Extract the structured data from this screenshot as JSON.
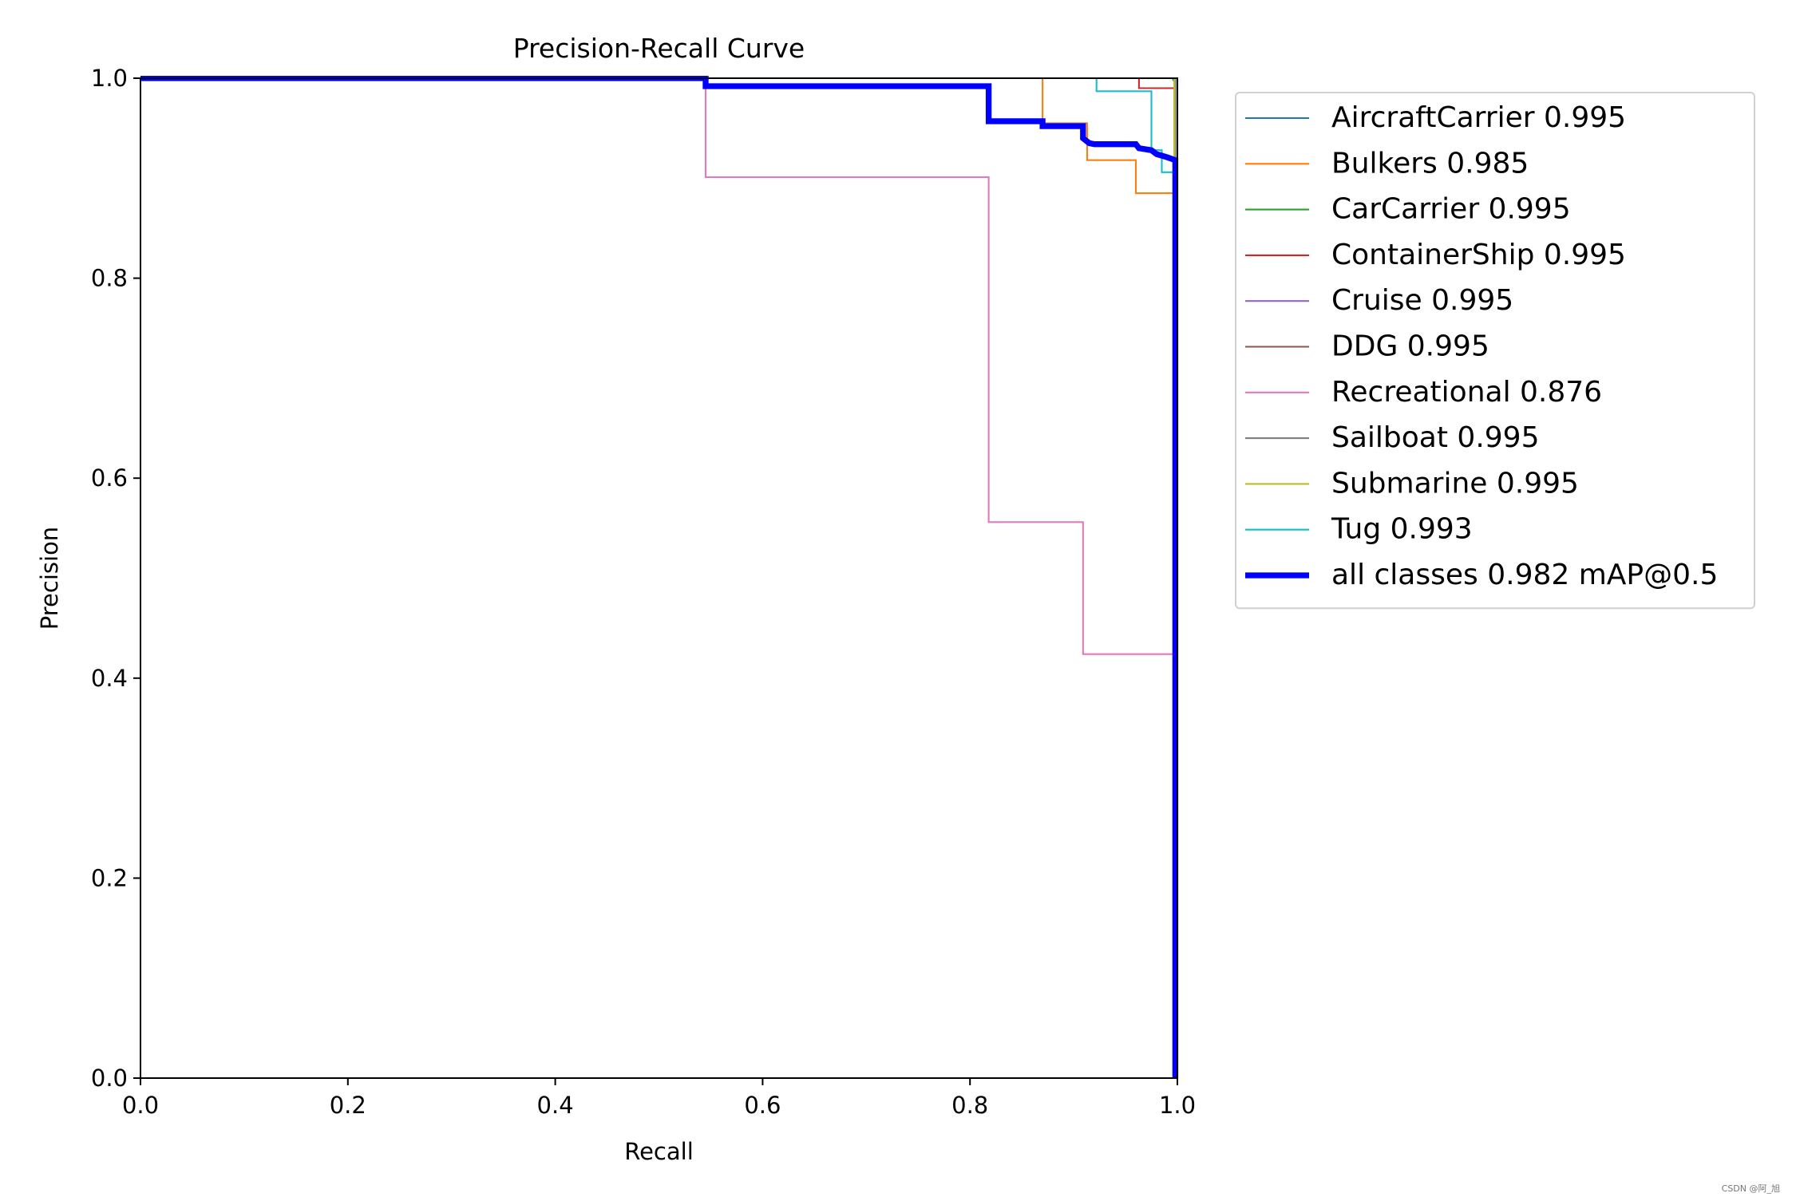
{
  "chart_data": {
    "type": "line",
    "title": "Precision-Recall Curve",
    "xlabel": "Recall",
    "ylabel": "Precision",
    "xlim": [
      0,
      1
    ],
    "ylim": [
      0,
      1
    ],
    "xticks": [
      "0.0",
      "0.2",
      "0.4",
      "0.6",
      "0.8",
      "1.0"
    ],
    "yticks": [
      "0.0",
      "0.2",
      "0.4",
      "0.6",
      "0.8",
      "1.0"
    ],
    "grid": false,
    "legend_position": "outside-right-top",
    "series": [
      {
        "name": "AircraftCarrier 0.995",
        "color": "#1f77b4",
        "width": 1,
        "x": [
          0,
          0.995,
          1.0,
          1.0
        ],
        "y": [
          1.0,
          1.0,
          1.0,
          0.0
        ]
      },
      {
        "name": "Bulkers 0.985",
        "color": "#ff7f0e",
        "width": 1,
        "x": [
          0,
          0.87,
          0.87,
          0.913,
          0.913,
          0.913,
          0.96,
          0.96,
          0.997,
          0.997
        ],
        "y": [
          1.0,
          1.0,
          0.955,
          0.955,
          0.918,
          0.918,
          0.918,
          0.885,
          0.885,
          0.0
        ]
      },
      {
        "name": "CarCarrier 0.995",
        "color": "#2ca02c",
        "width": 1,
        "x": [
          0,
          0.995,
          0.998,
          0.998
        ],
        "y": [
          1.0,
          1.0,
          0.995,
          0.0
        ]
      },
      {
        "name": "ContainerShip 0.995",
        "color": "#d62728",
        "width": 1,
        "x": [
          0,
          0.963,
          0.963,
          0.998,
          0.998
        ],
        "y": [
          1.0,
          1.0,
          0.99,
          0.99,
          0.0
        ]
      },
      {
        "name": "Cruise 0.995",
        "color": "#9467bd",
        "width": 1,
        "x": [
          0,
          0.998,
          0.998
        ],
        "y": [
          1.0,
          1.0,
          0.0
        ]
      },
      {
        "name": "DDG 0.995",
        "color": "#8c564b",
        "width": 1,
        "x": [
          0,
          0.998,
          0.998
        ],
        "y": [
          1.0,
          1.0,
          0.0
        ]
      },
      {
        "name": "Recreational 0.876",
        "color": "#e377c2",
        "width": 1,
        "x": [
          0,
          0.545,
          0.545,
          0.818,
          0.818,
          0.909,
          0.909,
          0.997,
          0.997
        ],
        "y": [
          1.0,
          1.0,
          0.901,
          0.901,
          0.556,
          0.556,
          0.424,
          0.424,
          0.0
        ]
      },
      {
        "name": "Sailboat 0.995",
        "color": "#7f7f7f",
        "width": 1,
        "x": [
          0,
          0.998,
          0.998
        ],
        "y": [
          1.0,
          1.0,
          0.0
        ]
      },
      {
        "name": "Submarine 0.995",
        "color": "#bcbd22",
        "width": 1,
        "x": [
          0,
          0.997,
          0.997,
          1.0,
          1.0
        ],
        "y": [
          1.0,
          1.0,
          0.92,
          0.92,
          0.0
        ]
      },
      {
        "name": "Tug 0.993",
        "color": "#17becf",
        "width": 1,
        "x": [
          0,
          0.922,
          0.922,
          0.975,
          0.975,
          0.985,
          0.985,
          0.998,
          0.998
        ],
        "y": [
          1.0,
          1.0,
          0.987,
          0.987,
          0.928,
          0.928,
          0.906,
          0.906,
          0.0
        ]
      },
      {
        "name": "all classes 0.982 mAP@0.5",
        "color": "#0000ff",
        "width": 3.5,
        "x": [
          0,
          0.545,
          0.545,
          0.818,
          0.818,
          0.87,
          0.87,
          0.909,
          0.909,
          0.915,
          0.92,
          0.96,
          0.963,
          0.975,
          0.98,
          0.99,
          0.998,
          0.998
        ],
        "y": [
          1.0,
          1.0,
          0.992,
          0.992,
          0.957,
          0.957,
          0.952,
          0.952,
          0.94,
          0.935,
          0.934,
          0.934,
          0.93,
          0.928,
          0.924,
          0.921,
          0.918,
          0.0
        ]
      }
    ]
  },
  "watermark": "CSDN @阿_旭"
}
